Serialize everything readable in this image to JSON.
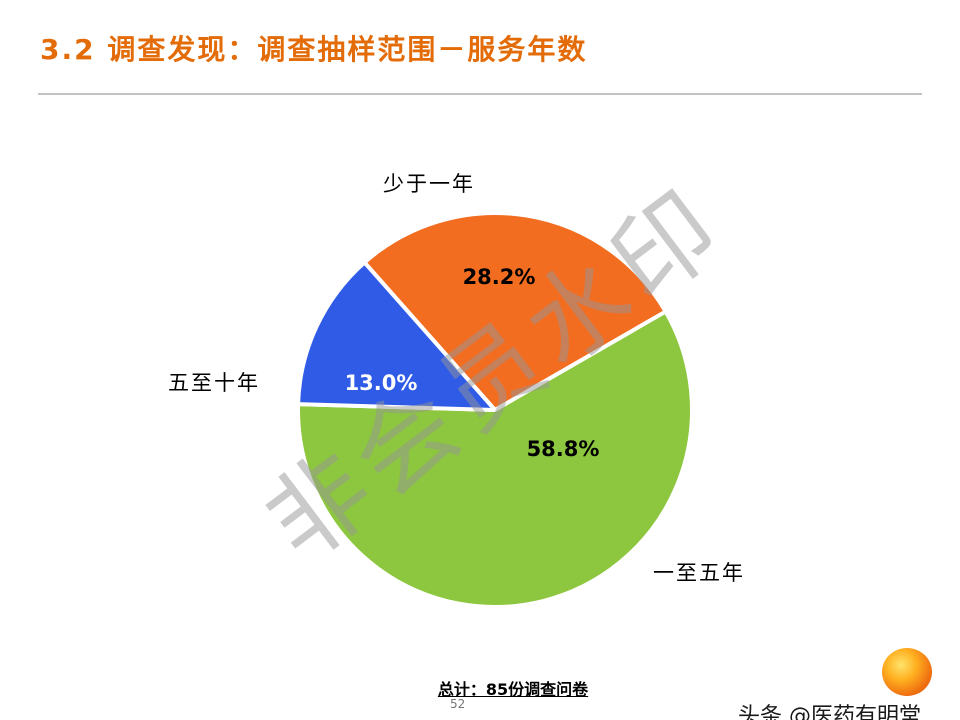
{
  "slide": {
    "title": "3.2 调查发现：调查抽样范围－服务年数",
    "page_number": "52",
    "watermark": "非会员水印",
    "brand": "头条 @医药有明堂"
  },
  "colors": {
    "title": "#E36C09",
    "divider": "#C3C3C3",
    "slice_orange": "#F36D21",
    "slice_green": "#8DC63F",
    "slice_blue": "#2F5BE7"
  },
  "chart_data": {
    "type": "pie",
    "title": "",
    "unit": "%",
    "direction": "clockwise",
    "start_angle_deg": -41.5,
    "legend": "none",
    "slices": [
      {
        "label": "少于一年",
        "value": 28.2,
        "display": "28.2%",
        "color": "#F36D21",
        "text_color": "#000000"
      },
      {
        "label": "一至五年",
        "value": 58.8,
        "display": "58.8%",
        "color": "#8DC63F",
        "text_color": "#000000"
      },
      {
        "label": "五至十年",
        "value": 13.0,
        "display": "13.0%",
        "color": "#2F5BE7",
        "text_color": "#FFFFFF"
      }
    ],
    "total_note": "总计：85份调查问卷"
  }
}
